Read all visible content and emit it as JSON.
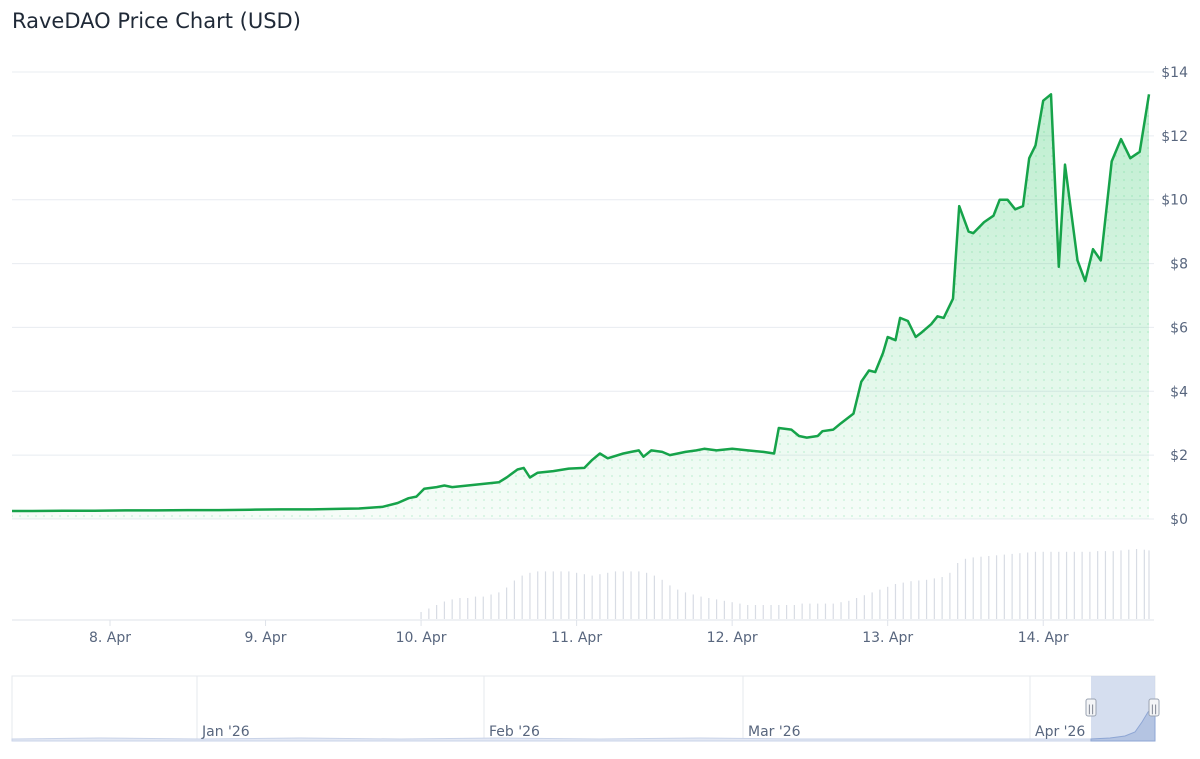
{
  "title": "RaveDAO Price Chart (USD)",
  "colors": {
    "line": "#16a34a",
    "area": "#22c55e",
    "volume": "#d8dce4",
    "grid": "#e8ecf1",
    "navigator_mask": "#c7d3ea"
  },
  "chart_data": {
    "type": "line",
    "title": "RaveDAO Price Chart (USD)",
    "ylim": [
      0,
      14
    ],
    "y_ticks": [
      "$0",
      "$2",
      "$4",
      "$6",
      "$8",
      "$10",
      "$12",
      "$14"
    ],
    "x_ticks": [
      "8. Apr",
      "9. Apr",
      "10. Apr",
      "11. Apr",
      "12. Apr",
      "13. Apr",
      "14. Apr"
    ],
    "x_range_days": [
      7.37,
      14.32
    ],
    "series": [
      {
        "values": [
          [
            7.37,
            0.25
          ],
          [
            7.5,
            0.25
          ],
          [
            7.7,
            0.26
          ],
          [
            7.9,
            0.26
          ],
          [
            8.1,
            0.27
          ],
          [
            8.3,
            0.27
          ],
          [
            8.5,
            0.28
          ],
          [
            8.7,
            0.28
          ],
          [
            8.9,
            0.29
          ],
          [
            9.1,
            0.3
          ],
          [
            9.3,
            0.3
          ],
          [
            9.5,
            0.32
          ],
          [
            9.6,
            0.33
          ],
          [
            9.75,
            0.38
          ],
          [
            9.85,
            0.5
          ],
          [
            9.92,
            0.65
          ],
          [
            9.97,
            0.7
          ],
          [
            10.02,
            0.95
          ],
          [
            10.1,
            1.0
          ],
          [
            10.15,
            1.05
          ],
          [
            10.2,
            1.0
          ],
          [
            10.3,
            1.05
          ],
          [
            10.4,
            1.1
          ],
          [
            10.5,
            1.15
          ],
          [
            10.55,
            1.3
          ],
          [
            10.62,
            1.55
          ],
          [
            10.66,
            1.6
          ],
          [
            10.7,
            1.3
          ],
          [
            10.75,
            1.45
          ],
          [
            10.85,
            1.5
          ],
          [
            10.95,
            1.58
          ],
          [
            11.05,
            1.6
          ],
          [
            11.1,
            1.85
          ],
          [
            11.15,
            2.05
          ],
          [
            11.2,
            1.9
          ],
          [
            11.3,
            2.05
          ],
          [
            11.35,
            2.1
          ],
          [
            11.4,
            2.15
          ],
          [
            11.43,
            1.95
          ],
          [
            11.48,
            2.15
          ],
          [
            11.55,
            2.1
          ],
          [
            11.6,
            2.0
          ],
          [
            11.7,
            2.1
          ],
          [
            11.77,
            2.15
          ],
          [
            11.82,
            2.2
          ],
          [
            11.9,
            2.15
          ],
          [
            12.0,
            2.2
          ],
          [
            12.1,
            2.15
          ],
          [
            12.2,
            2.1
          ],
          [
            12.27,
            2.05
          ],
          [
            12.3,
            2.85
          ],
          [
            12.38,
            2.8
          ],
          [
            12.43,
            2.6
          ],
          [
            12.48,
            2.55
          ],
          [
            12.55,
            2.6
          ],
          [
            12.58,
            2.75
          ],
          [
            12.65,
            2.8
          ],
          [
            12.7,
            3.0
          ],
          [
            12.78,
            3.3
          ],
          [
            12.83,
            4.3
          ],
          [
            12.88,
            4.65
          ],
          [
            12.92,
            4.6
          ],
          [
            12.97,
            5.2
          ],
          [
            13.0,
            5.7
          ],
          [
            13.05,
            5.6
          ],
          [
            13.08,
            6.3
          ],
          [
            13.13,
            6.2
          ],
          [
            13.18,
            5.7
          ],
          [
            13.22,
            5.85
          ],
          [
            13.28,
            6.1
          ],
          [
            13.32,
            6.35
          ],
          [
            13.36,
            6.3
          ],
          [
            13.42,
            6.9
          ],
          [
            13.46,
            9.8
          ],
          [
            13.52,
            9.0
          ],
          [
            13.55,
            8.95
          ],
          [
            13.62,
            9.3
          ],
          [
            13.68,
            9.5
          ],
          [
            13.72,
            10.0
          ],
          [
            13.77,
            10.0
          ],
          [
            13.82,
            9.7
          ],
          [
            13.87,
            9.8
          ],
          [
            13.91,
            11.3
          ],
          [
            13.95,
            11.7
          ],
          [
            14.0,
            13.1
          ],
          [
            14.05,
            13.3
          ],
          [
            14.1,
            7.9
          ],
          [
            14.14,
            11.1
          ],
          [
            14.22,
            8.1
          ],
          [
            14.27,
            7.45
          ],
          [
            14.32,
            8.45
          ],
          [
            14.37,
            8.1
          ],
          [
            14.44,
            11.2
          ],
          [
            14.5,
            11.9
          ],
          [
            14.56,
            11.3
          ],
          [
            14.62,
            11.5
          ],
          [
            14.68,
            13.3
          ]
        ]
      }
    ],
    "volume": [
      [
        10.0,
        0.1
      ],
      [
        10.05,
        0.15
      ],
      [
        10.1,
        0.2
      ],
      [
        10.15,
        0.25
      ],
      [
        10.2,
        0.28
      ],
      [
        10.25,
        0.3
      ],
      [
        10.3,
        0.3
      ],
      [
        10.35,
        0.32
      ],
      [
        10.4,
        0.32
      ],
      [
        10.45,
        0.35
      ],
      [
        10.5,
        0.38
      ],
      [
        10.55,
        0.45
      ],
      [
        10.6,
        0.55
      ],
      [
        10.65,
        0.62
      ],
      [
        10.7,
        0.66
      ],
      [
        10.75,
        0.68
      ],
      [
        10.8,
        0.68
      ],
      [
        10.85,
        0.68
      ],
      [
        10.9,
        0.68
      ],
      [
        10.95,
        0.68
      ],
      [
        11.0,
        0.66
      ],
      [
        11.05,
        0.64
      ],
      [
        11.1,
        0.62
      ],
      [
        11.15,
        0.64
      ],
      [
        11.2,
        0.66
      ],
      [
        11.25,
        0.68
      ],
      [
        11.3,
        0.68
      ],
      [
        11.35,
        0.68
      ],
      [
        11.4,
        0.68
      ],
      [
        11.45,
        0.66
      ],
      [
        11.5,
        0.62
      ],
      [
        11.55,
        0.56
      ],
      [
        11.6,
        0.48
      ],
      [
        11.65,
        0.42
      ],
      [
        11.7,
        0.38
      ],
      [
        11.75,
        0.35
      ],
      [
        11.8,
        0.32
      ],
      [
        11.85,
        0.3
      ],
      [
        11.9,
        0.28
      ],
      [
        11.95,
        0.26
      ],
      [
        12.0,
        0.24
      ],
      [
        12.05,
        0.22
      ],
      [
        12.1,
        0.2
      ],
      [
        12.15,
        0.2
      ],
      [
        12.2,
        0.2
      ],
      [
        12.25,
        0.2
      ],
      [
        12.3,
        0.2
      ],
      [
        12.35,
        0.2
      ],
      [
        12.4,
        0.2
      ],
      [
        12.45,
        0.22
      ],
      [
        12.5,
        0.22
      ],
      [
        12.55,
        0.22
      ],
      [
        12.6,
        0.22
      ],
      [
        12.65,
        0.22
      ],
      [
        12.7,
        0.24
      ],
      [
        12.75,
        0.26
      ],
      [
        12.8,
        0.3
      ],
      [
        12.85,
        0.34
      ],
      [
        12.9,
        0.38
      ],
      [
        12.95,
        0.42
      ],
      [
        13.0,
        0.46
      ],
      [
        13.05,
        0.5
      ],
      [
        13.1,
        0.52
      ],
      [
        13.15,
        0.54
      ],
      [
        13.2,
        0.55
      ],
      [
        13.25,
        0.56
      ],
      [
        13.3,
        0.58
      ],
      [
        13.35,
        0.6
      ],
      [
        13.4,
        0.66
      ],
      [
        13.45,
        0.8
      ],
      [
        13.5,
        0.86
      ],
      [
        13.55,
        0.88
      ],
      [
        13.6,
        0.89
      ],
      [
        13.65,
        0.9
      ],
      [
        13.7,
        0.91
      ],
      [
        13.75,
        0.92
      ],
      [
        13.8,
        0.93
      ],
      [
        13.85,
        0.94
      ],
      [
        13.9,
        0.95
      ],
      [
        13.95,
        0.96
      ],
      [
        14.0,
        0.96
      ],
      [
        14.05,
        0.96
      ],
      [
        14.1,
        0.96
      ],
      [
        14.15,
        0.96
      ],
      [
        14.2,
        0.96
      ],
      [
        14.25,
        0.96
      ],
      [
        14.3,
        0.96
      ],
      [
        14.35,
        0.97
      ],
      [
        14.4,
        0.97
      ],
      [
        14.45,
        0.97
      ],
      [
        14.5,
        0.98
      ],
      [
        14.55,
        0.99
      ],
      [
        14.6,
        1.0
      ],
      [
        14.65,
        0.99
      ],
      [
        14.68,
        0.98
      ]
    ],
    "navigator": {
      "labels": [
        "Jan '26",
        "Feb '26",
        "Mar '26",
        "Apr '26"
      ],
      "handle_glyph": "||"
    }
  }
}
